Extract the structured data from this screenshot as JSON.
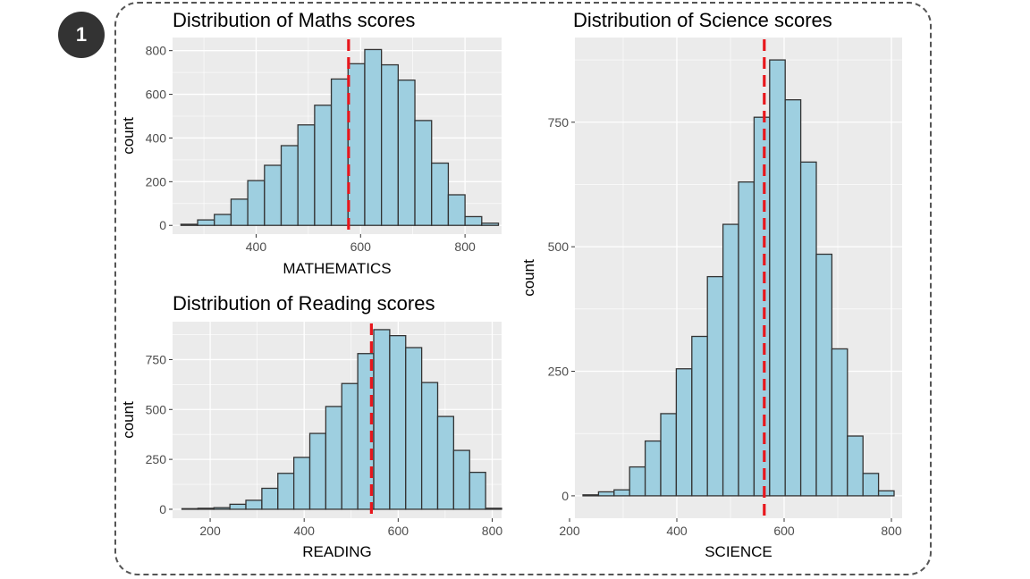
{
  "badge": "1",
  "colors": {
    "panel_bg": "#ebebeb",
    "grid": "#ffffff",
    "bar_fill": "#9ecfe0",
    "bar_stroke": "#333333",
    "mean_line": "#e8161c"
  },
  "chart_data": [
    {
      "type": "bar",
      "title": "Distribution of Maths scores",
      "xlabel": "MATHEMATICS",
      "ylabel": "count",
      "xlim": [
        240,
        870
      ],
      "ylim": [
        -40,
        860
      ],
      "xticks": [
        400,
        600,
        800
      ],
      "yticks": [
        0,
        200,
        400,
        600,
        800
      ],
      "bin_width": 32,
      "bin_starts": [
        256,
        288,
        320,
        352,
        384,
        416,
        448,
        480,
        512,
        544,
        576,
        608,
        640,
        672,
        704,
        736,
        768,
        800,
        832
      ],
      "values": [
        5,
        25,
        50,
        120,
        205,
        275,
        365,
        460,
        550,
        670,
        740,
        805,
        735,
        665,
        480,
        285,
        140,
        40,
        10
      ],
      "mean": 577
    },
    {
      "type": "bar",
      "title": "Distribution of Reading scores",
      "xlabel": "READING",
      "ylabel": "count",
      "xlim": [
        120,
        820
      ],
      "ylim": [
        -45,
        940
      ],
      "xticks": [
        200,
        400,
        600,
        800
      ],
      "yticks": [
        0,
        250,
        500,
        750
      ],
      "bin_width": 34,
      "bin_starts": [
        140,
        174,
        208,
        242,
        276,
        310,
        344,
        378,
        412,
        446,
        480,
        514,
        548,
        582,
        616,
        650,
        684,
        718,
        752,
        786
      ],
      "values": [
        3,
        5,
        8,
        25,
        45,
        105,
        180,
        260,
        380,
        515,
        630,
        780,
        900,
        870,
        810,
        635,
        465,
        295,
        185,
        5
      ],
      "mean": 543
    },
    {
      "type": "bar",
      "title": "Distribution of Science scores",
      "xlabel": "SCIENCE",
      "ylabel": "count",
      "xlim": [
        210,
        820
      ],
      "ylim": [
        -45,
        920
      ],
      "xticks": [
        200,
        400,
        600,
        800
      ],
      "yticks": [
        0,
        250,
        500,
        750
      ],
      "bin_width": 29,
      "bin_starts": [
        225,
        254,
        283,
        312,
        341,
        370,
        399,
        428,
        457,
        486,
        515,
        544,
        573,
        602,
        631,
        660,
        689,
        718,
        747,
        776
      ],
      "values": [
        2,
        8,
        12,
        58,
        110,
        165,
        255,
        320,
        440,
        545,
        630,
        760,
        875,
        795,
        670,
        485,
        295,
        120,
        45,
        10
      ],
      "mean": 563
    }
  ]
}
